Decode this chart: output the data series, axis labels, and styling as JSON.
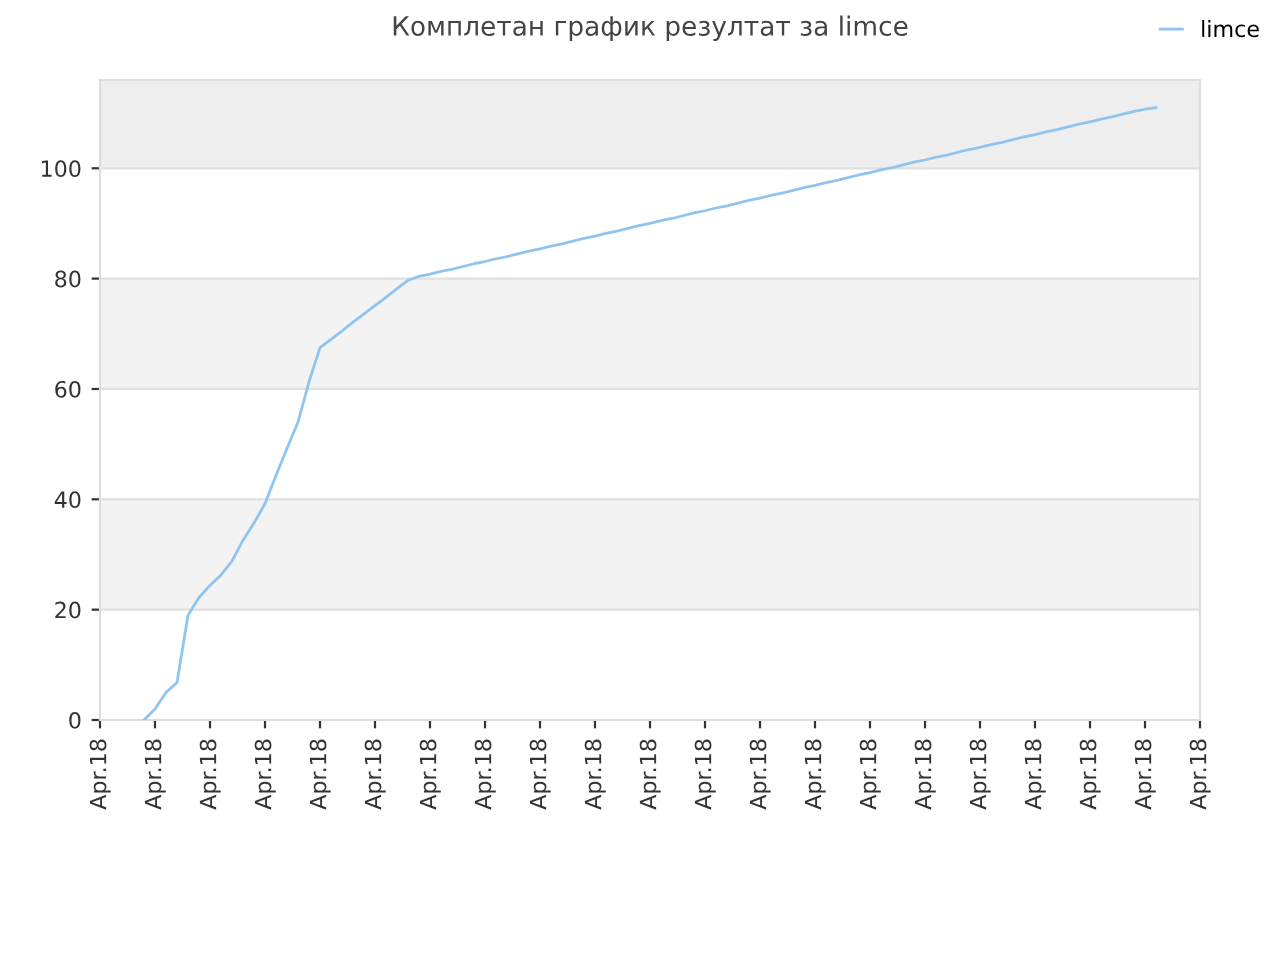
{
  "chart_data": {
    "type": "line",
    "title": "Комплетан график резултат за limce",
    "categories": [
      "Apr.18",
      null,
      null,
      null,
      null,
      "Apr.18",
      null,
      null,
      null,
      null,
      "Apr.18",
      null,
      null,
      null,
      null,
      "Apr.18",
      null,
      null,
      null,
      null,
      "Apr.18",
      null,
      null,
      null,
      null,
      "Apr.18",
      null,
      null,
      null,
      null,
      "Apr.18",
      null,
      null,
      null,
      null,
      "Apr.18",
      null,
      null,
      null,
      null,
      "Apr.18",
      null,
      null,
      null,
      null,
      "Apr.18",
      null,
      null,
      null,
      null,
      "Apr.18",
      null,
      null,
      null,
      null,
      "Apr.18",
      null,
      null,
      null,
      null,
      "Apr.18",
      null,
      null,
      null,
      null,
      "Apr.18",
      null,
      null,
      null,
      null,
      "Apr.18",
      null,
      null,
      null,
      null,
      "Apr.18",
      null,
      null,
      null,
      null,
      "Apr.18",
      null,
      null,
      null,
      null,
      "Apr.18",
      null,
      null,
      null,
      null,
      "Apr.18",
      null,
      null,
      null,
      null,
      "Apr.18",
      null,
      null,
      null,
      null,
      "Apr.18"
    ],
    "series": [
      {
        "name": "limce",
        "color": "#90c4f0",
        "values": [
          null,
          null,
          null,
          null,
          0,
          2,
          5,
          6.8,
          19,
          22.2,
          24.4,
          26.3,
          28.8,
          32.6,
          35.7,
          39.2,
          44.3,
          49.2,
          54,
          61.3,
          67.5,
          69.0,
          70.5,
          72.1,
          73.6,
          75.1,
          76.6,
          78.2,
          79.7,
          80.4,
          80.8,
          81.3,
          81.7,
          82.2,
          82.7,
          83.1,
          83.6,
          84.0,
          84.5,
          85.0,
          85.4,
          85.9,
          86.3,
          86.8,
          87.3,
          87.7,
          88.2,
          88.6,
          89.1,
          89.6,
          90.0,
          90.5,
          90.9,
          91.4,
          91.9,
          92.3,
          92.8,
          93.2,
          93.7,
          94.2,
          94.6,
          95.1,
          95.5,
          96.0,
          96.5,
          96.9,
          97.4,
          97.8,
          98.3,
          98.8,
          99.2,
          99.7,
          100.1,
          100.6,
          101.1,
          101.5,
          102.0,
          102.4,
          102.9,
          103.4,
          103.8,
          104.3,
          104.7,
          105.2,
          105.7,
          106.1,
          106.6,
          107.0,
          107.5,
          108.0,
          108.4,
          108.9,
          109.3,
          109.8,
          110.3,
          110.7,
          111,
          null,
          null,
          null,
          null
        ]
      }
    ],
    "ylim": [
      0,
      116
    ],
    "yticks": [
      0,
      20,
      40,
      60,
      80,
      100
    ],
    "bands": [
      {
        "axis": "y",
        "from": 20,
        "to": 40,
        "label": null,
        "color": "#f3f3f3"
      },
      {
        "axis": "y",
        "from": 60,
        "to": 80,
        "label": null,
        "color": "#f3f3f3"
      },
      {
        "axis": "y",
        "from": 100,
        "to": 116,
        "label": null,
        "color": "#eeeeee"
      }
    ],
    "grid": "y",
    "legend": "top right",
    "marker": "none",
    "line_style": "solid"
  }
}
